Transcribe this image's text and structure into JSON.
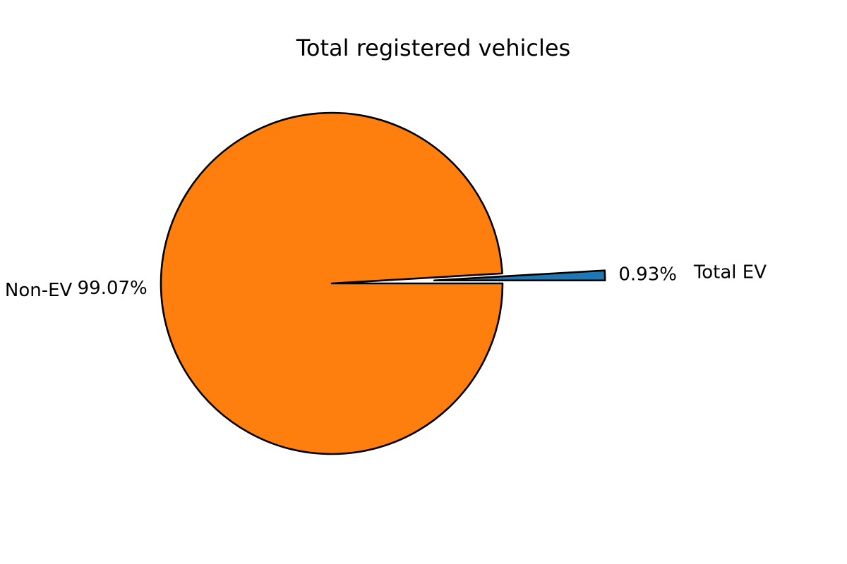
{
  "chart_data": {
    "type": "pie",
    "title": "Total registered vehicles",
    "slices": [
      {
        "label": "Total EV",
        "value": 0.93,
        "pct_label": "0.93%",
        "color": "#1f77b4",
        "exploded": true
      },
      {
        "label": "Non-EV",
        "value": 99.07,
        "pct_label": "99.07%",
        "color": "#ff7f0e",
        "exploded": false
      }
    ],
    "legend": "none"
  }
}
